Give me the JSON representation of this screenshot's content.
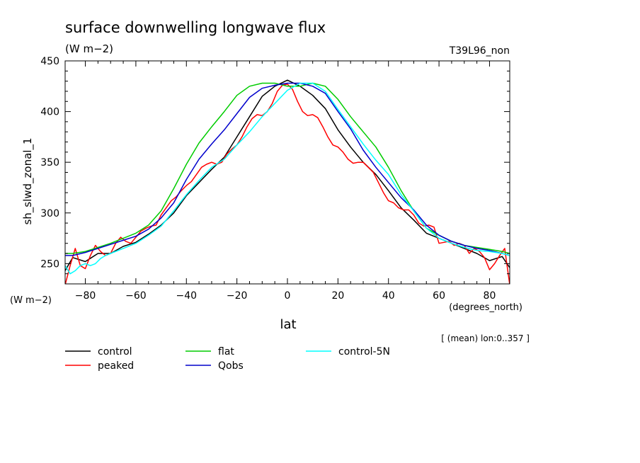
{
  "title": "surface downwelling longwave flux",
  "units_top": "(W m−2)",
  "run_label": "T39L96_non",
  "y_unit_label": "(W m−2)",
  "x_unit_label": "(degrees_north)",
  "ylabel": "sh_slwd_zonal_1",
  "xlabel": "lat",
  "note": "[ (mean) lon:0..357 ]",
  "chart_data": {
    "type": "line",
    "title": "surface downwelling longwave flux",
    "xlabel": "lat",
    "ylabel": "sh_slwd_zonal_1",
    "xlim": [
      -88,
      88
    ],
    "ylim": [
      230,
      450
    ],
    "xticks": [
      -80,
      -60,
      -40,
      -20,
      0,
      20,
      40,
      60,
      80
    ],
    "yticks": [
      250,
      300,
      350,
      400,
      450
    ],
    "xticklabels": [
      "−80",
      "−60",
      "−40",
      "−20",
      "0",
      "20",
      "40",
      "60",
      "80"
    ],
    "yticklabels": [
      "250",
      "300",
      "350",
      "400",
      "450"
    ],
    "grid": false,
    "legend_position": "bottom",
    "series": [
      {
        "name": "control",
        "color": "#000000",
        "x": [
          -88,
          -85,
          -80,
          -75,
          -70,
          -65,
          -60,
          -55,
          -50,
          -45,
          -40,
          -35,
          -30,
          -25,
          -20,
          -15,
          -10,
          -5,
          0,
          5,
          10,
          15,
          20,
          25,
          30,
          35,
          40,
          45,
          50,
          55,
          60,
          65,
          70,
          75,
          80,
          85,
          88
        ],
        "y": [
          243,
          256,
          252,
          260,
          260,
          267,
          271,
          279,
          288,
          300,
          317,
          330,
          343,
          355,
          375,
          395,
          415,
          425,
          431,
          425,
          416,
          403,
          382,
          365,
          350,
          338,
          322,
          305,
          293,
          280,
          275,
          270,
          265,
          260,
          253,
          257,
          246
        ]
      },
      {
        "name": "peaked",
        "color": "#ff0000",
        "x": [
          -88,
          -86,
          -84,
          -82,
          -80,
          -78,
          -76,
          -74,
          -72,
          -70,
          -68,
          -66,
          -64,
          -62,
          -60,
          -58,
          -56,
          -54,
          -52,
          -50,
          -48,
          -46,
          -44,
          -42,
          -40,
          -38,
          -36,
          -34,
          -32,
          -30,
          -28,
          -26,
          -24,
          -22,
          -20,
          -18,
          -16,
          -14,
          -12,
          -10,
          -8,
          -6,
          -4,
          -2,
          0,
          2,
          4,
          6,
          8,
          10,
          12,
          14,
          16,
          18,
          20,
          22,
          24,
          26,
          28,
          30,
          32,
          34,
          36,
          38,
          40,
          42,
          44,
          46,
          48,
          50,
          52,
          54,
          56,
          58,
          60,
          62,
          64,
          66,
          68,
          70,
          72,
          74,
          76,
          78,
          80,
          82,
          84,
          86,
          88
        ],
        "y": [
          229,
          248,
          265,
          248,
          245,
          258,
          268,
          262,
          258,
          260,
          270,
          276,
          272,
          270,
          276,
          282,
          285,
          287,
          288,
          298,
          305,
          312,
          316,
          322,
          327,
          331,
          338,
          345,
          348,
          350,
          348,
          350,
          358,
          363,
          367,
          375,
          385,
          393,
          397,
          396,
          400,
          408,
          420,
          426,
          427,
          422,
          410,
          400,
          396,
          397,
          394,
          385,
          375,
          367,
          365,
          360,
          353,
          349,
          350,
          350,
          345,
          340,
          330,
          320,
          312,
          310,
          305,
          303,
          303,
          298,
          290,
          287,
          288,
          286,
          270,
          271,
          272,
          268,
          270,
          268,
          260,
          265,
          262,
          256,
          244,
          250,
          258,
          265,
          229
        ]
      },
      {
        "name": "flat",
        "color": "#00cc00",
        "x": [
          -88,
          -85,
          -80,
          -75,
          -70,
          -65,
          -60,
          -55,
          -50,
          -45,
          -40,
          -35,
          -30,
          -25,
          -20,
          -15,
          -10,
          -5,
          0,
          5,
          10,
          15,
          20,
          25,
          30,
          35,
          40,
          45,
          50,
          55,
          60,
          65,
          70,
          75,
          80,
          85,
          88
        ],
        "y": [
          260,
          260,
          262,
          266,
          270,
          275,
          280,
          288,
          302,
          324,
          348,
          369,
          385,
          400,
          416,
          425,
          428,
          428,
          425,
          425,
          428,
          425,
          412,
          395,
          380,
          365,
          345,
          322,
          302,
          285,
          278,
          272,
          268,
          266,
          264,
          262,
          260
        ]
      },
      {
        "name": "Qobs",
        "color": "#0000cc",
        "x": [
          -88,
          -85,
          -80,
          -75,
          -70,
          -65,
          -60,
          -55,
          -50,
          -45,
          -40,
          -35,
          -30,
          -25,
          -20,
          -15,
          -10,
          -5,
          0,
          5,
          10,
          15,
          20,
          25,
          30,
          35,
          40,
          45,
          50,
          55,
          60,
          65,
          70,
          75,
          80,
          85,
          88
        ],
        "y": [
          258,
          258,
          261,
          265,
          269,
          273,
          277,
          284,
          295,
          310,
          333,
          353,
          368,
          382,
          398,
          414,
          423,
          426,
          428,
          428,
          425,
          418,
          400,
          383,
          362,
          345,
          330,
          315,
          303,
          288,
          278,
          272,
          268,
          265,
          263,
          260,
          258
        ]
      },
      {
        "name": "control-5N",
        "color": "#00ffff",
        "x": [
          -88,
          -86,
          -84,
          -82,
          -80,
          -78,
          -76,
          -74,
          -72,
          -70,
          -65,
          -60,
          -55,
          -50,
          -45,
          -40,
          -35,
          -30,
          -25,
          -20,
          -15,
          -10,
          -5,
          0,
          5,
          10,
          15,
          20,
          25,
          30,
          35,
          40,
          45,
          50,
          55,
          60,
          65,
          70,
          75,
          80,
          85,
          88
        ],
        "y": [
          248,
          240,
          243,
          248,
          250,
          248,
          250,
          255,
          258,
          260,
          265,
          270,
          278,
          287,
          302,
          318,
          332,
          345,
          353,
          367,
          380,
          395,
          408,
          421,
          428,
          428,
          420,
          402,
          385,
          368,
          352,
          338,
          318,
          302,
          285,
          275,
          270,
          266,
          263,
          262,
          260,
          258
        ]
      }
    ]
  }
}
